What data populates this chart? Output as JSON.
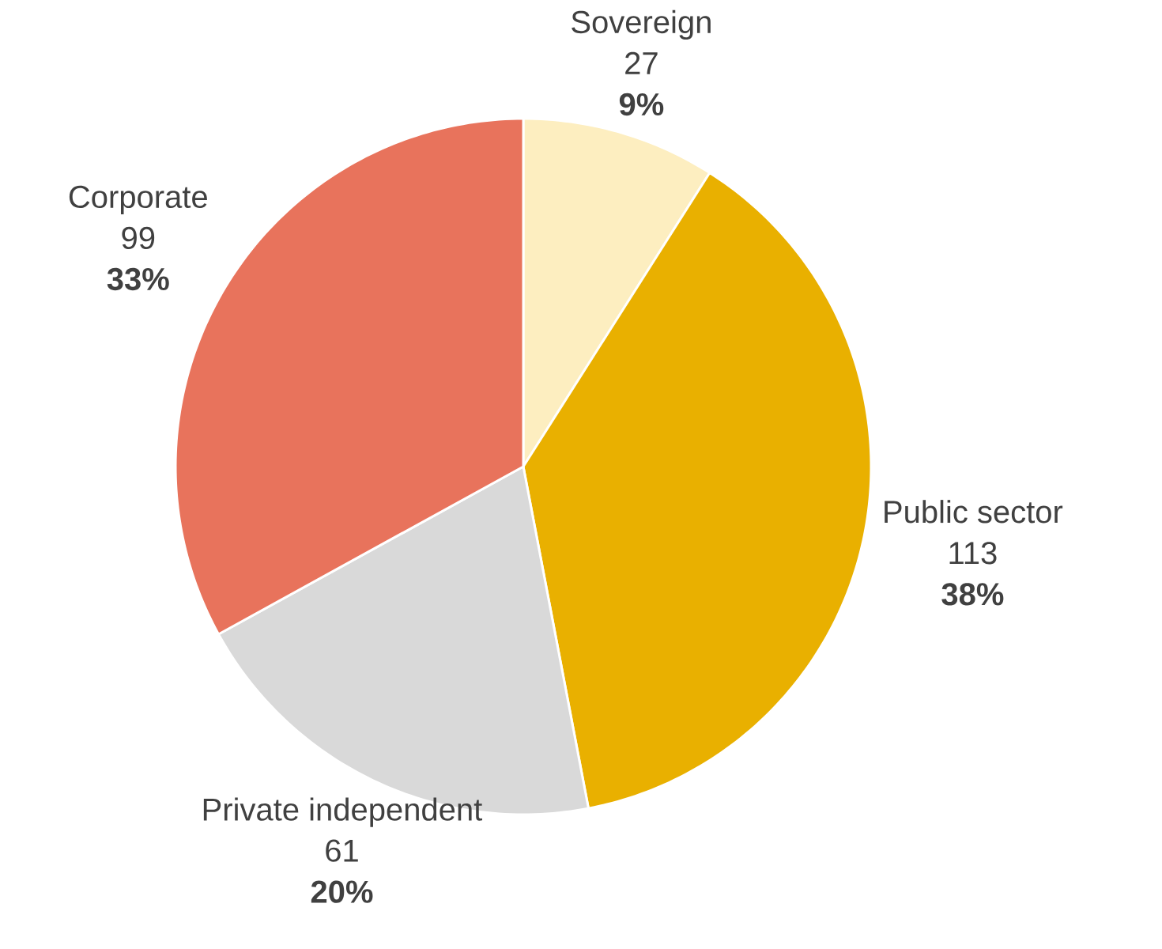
{
  "chart_data": {
    "type": "pie",
    "categories": [
      "Sovereign",
      "Public sector",
      "Private independent",
      "Corporate"
    ],
    "values": [
      9,
      38,
      20,
      33
    ],
    "colors": [
      "#fdeec0",
      "#e9b000",
      "#d9d9d9",
      "#e8735c"
    ],
    "value_labels": [
      "9%",
      "38%",
      "20%",
      "33%"
    ],
    "annotations": [
      "27",
      "113",
      "61",
      "99"
    ]
  }
}
